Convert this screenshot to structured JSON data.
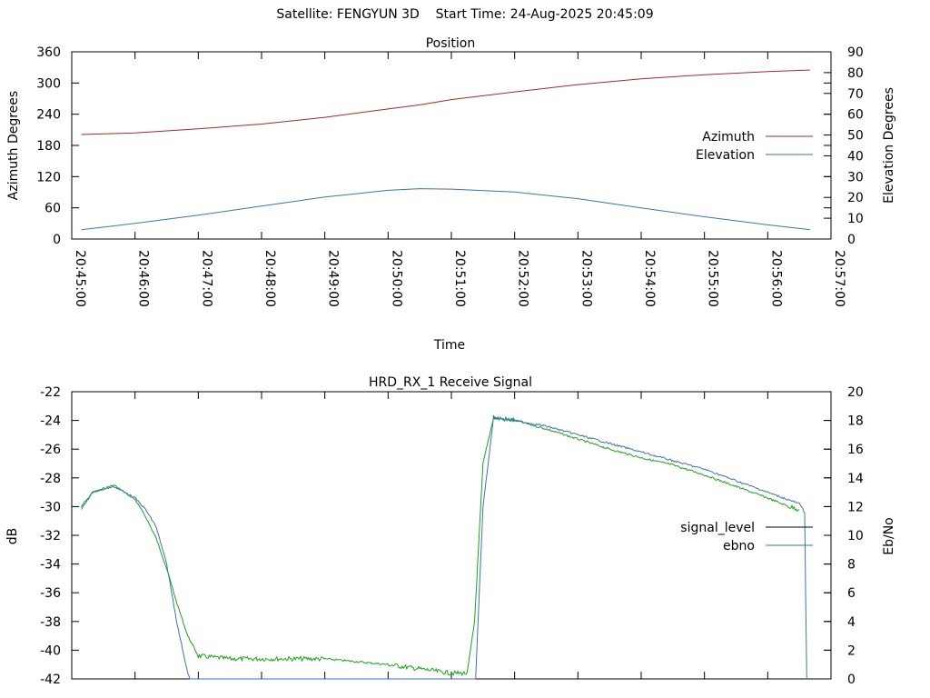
{
  "page_title": "Satellite: FENGYUN 3D    Start Time: 24-Aug-2025 20:45:09",
  "colors": {
    "azimuth": "#a52a2a",
    "elevation": "#3f72b5",
    "signal_level": "#1aa31a",
    "ebno": "#3f72b5",
    "legend_signal": "#000000"
  },
  "chart_data": [
    {
      "type": "line",
      "title": "Position",
      "xlabel": "Time",
      "ylabel": "Azimuth Degrees",
      "y2label": "Elevation Degrees",
      "xlim": [
        "20:45:00",
        "20:57:00"
      ],
      "ylim": [
        0,
        360
      ],
      "y2lim": [
        0,
        90
      ],
      "x_ticks": [
        "20:45:00",
        "20:46:00",
        "20:47:00",
        "20:48:00",
        "20:49:00",
        "20:50:00",
        "20:51:00",
        "20:52:00",
        "20:53:00",
        "20:54:00",
        "20:55:00",
        "20:56:00",
        "20:57:00"
      ],
      "y_ticks": [
        0,
        60,
        120,
        180,
        240,
        300,
        360
      ],
      "y2_ticks": [
        0,
        10,
        20,
        30,
        40,
        50,
        60,
        70,
        80,
        90
      ],
      "legend_position": "right",
      "grid": false,
      "series": [
        {
          "name": "Azimuth",
          "axis": "y1",
          "color": "#a52a2a",
          "points": [
            [
              "20:45:09",
              201
            ],
            [
              "20:46:00",
              204
            ],
            [
              "20:47:00",
              212
            ],
            [
              "20:48:00",
              221
            ],
            [
              "20:49:00",
              234
            ],
            [
              "20:50:00",
              250
            ],
            [
              "20:50:30",
              258
            ],
            [
              "20:51:00",
              268
            ],
            [
              "20:52:00",
              283
            ],
            [
              "20:53:00",
              297
            ],
            [
              "20:54:00",
              308
            ],
            [
              "20:55:00",
              316
            ],
            [
              "20:56:00",
              322
            ],
            [
              "20:56:40",
              325
            ]
          ]
        },
        {
          "name": "Elevation",
          "axis": "y2",
          "color": "#3f72b5",
          "points": [
            [
              "20:45:09",
              4.5
            ],
            [
              "20:46:00",
              7.5
            ],
            [
              "20:47:00",
              11.5
            ],
            [
              "20:48:00",
              15.8
            ],
            [
              "20:49:00",
              20.2
            ],
            [
              "20:50:00",
              23.4
            ],
            [
              "20:50:30",
              24.2
            ],
            [
              "20:51:00",
              24.0
            ],
            [
              "20:52:00",
              22.6
            ],
            [
              "20:53:00",
              19.4
            ],
            [
              "20:54:00",
              15.0
            ],
            [
              "20:55:00",
              10.7
            ],
            [
              "20:56:00",
              6.8
            ],
            [
              "20:56:40",
              4.5
            ]
          ]
        }
      ]
    },
    {
      "type": "line",
      "title": "HRD_RX_1 Receive Signal",
      "ylabel": "dB",
      "y2label": "Eb/No",
      "xlim": [
        "20:45:00",
        "20:57:00"
      ],
      "ylim": [
        -42,
        -22
      ],
      "y2lim": [
        0,
        20
      ],
      "y_ticks": [
        -42,
        -40,
        -38,
        -36,
        -34,
        -32,
        -30,
        -28,
        -26,
        -24,
        -22
      ],
      "y2_ticks": [
        0,
        2,
        4,
        6,
        8,
        10,
        12,
        14,
        16,
        18,
        20
      ],
      "legend_position": "right",
      "grid": false,
      "series": [
        {
          "name": "signal_level",
          "axis": "y1",
          "color": "#1aa31a",
          "points": [
            [
              "20:45:09",
              -30.2
            ],
            [
              "20:45:20",
              -29.0
            ],
            [
              "20:45:40",
              -28.5
            ],
            [
              "20:46:00",
              -29.5
            ],
            [
              "20:46:10",
              -30.7
            ],
            [
              "20:46:20",
              -32.2
            ],
            [
              "20:46:30",
              -34.3
            ],
            [
              "20:46:40",
              -36.8
            ],
            [
              "20:46:50",
              -39.0
            ],
            [
              "20:47:00",
              -40.4
            ],
            [
              "20:47:30",
              -40.6
            ],
            [
              "20:48:00",
              -40.6
            ],
            [
              "20:49:00",
              -40.6
            ],
            [
              "20:50:00",
              -41.0
            ],
            [
              "20:50:30",
              -41.3
            ],
            [
              "20:51:00",
              -41.6
            ],
            [
              "20:51:15",
              -41.6
            ],
            [
              "20:51:22",
              -38.0
            ],
            [
              "20:51:30",
              -27.0
            ],
            [
              "20:51:40",
              -23.8
            ],
            [
              "20:52:00",
              -24.0
            ],
            [
              "20:52:30",
              -24.6
            ],
            [
              "20:53:00",
              -25.3
            ],
            [
              "20:53:30",
              -26.0
            ],
            [
              "20:54:00",
              -26.6
            ],
            [
              "20:54:30",
              -27.1
            ],
            [
              "20:55:00",
              -27.8
            ],
            [
              "20:55:30",
              -28.6
            ],
            [
              "20:56:00",
              -29.4
            ],
            [
              "20:56:20",
              -30.0
            ],
            [
              "20:56:30",
              -30.2
            ]
          ]
        },
        {
          "name": "ebno",
          "axis": "y2",
          "color": "#3f72b5",
          "points": [
            [
              "20:45:09",
              12.0
            ],
            [
              "20:45:20",
              13.0
            ],
            [
              "20:45:40",
              13.4
            ],
            [
              "20:46:00",
              12.6
            ],
            [
              "20:46:10",
              11.8
            ],
            [
              "20:46:20",
              10.6
            ],
            [
              "20:46:30",
              8.0
            ],
            [
              "20:46:40",
              3.8
            ],
            [
              "20:46:50",
              0.4
            ],
            [
              "20:46:52",
              0.0
            ],
            [
              "20:51:23",
              0.0
            ],
            [
              "20:51:30",
              12.0
            ],
            [
              "20:51:40",
              18.2
            ],
            [
              "20:52:00",
              18.0
            ],
            [
              "20:52:30",
              17.6
            ],
            [
              "20:53:00",
              17.0
            ],
            [
              "20:53:30",
              16.4
            ],
            [
              "20:54:00",
              15.8
            ],
            [
              "20:54:30",
              15.2
            ],
            [
              "20:55:00",
              14.6
            ],
            [
              "20:55:30",
              13.8
            ],
            [
              "20:56:00",
              13.0
            ],
            [
              "20:56:30",
              12.2
            ],
            [
              "20:56:35",
              11.6
            ],
            [
              "20:56:37",
              0.0
            ]
          ]
        }
      ]
    }
  ]
}
